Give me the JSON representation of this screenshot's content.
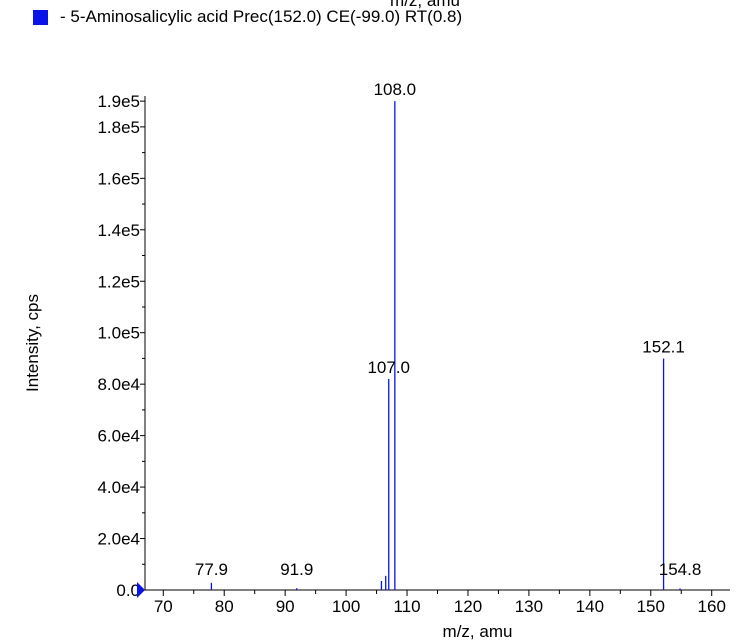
{
  "colors": {
    "series": "#0a14e8",
    "axis": "#000000",
    "background": "#ffffff"
  },
  "header": {
    "cut_title": "m/z, amu"
  },
  "legend": {
    "marker": "square",
    "text": "- 5-Aminosalicylic acid Prec(152.0) CE(-99.0) RT(0.8)"
  },
  "chart_data": {
    "type": "bar",
    "subtype": "mass-spectrum-stick",
    "title": "",
    "xlabel": "m/z, amu",
    "ylabel": "Intensity, cps",
    "xlim": [
      67,
      163
    ],
    "ylim": [
      0,
      192000
    ],
    "x_ticks": [
      70,
      80,
      90,
      100,
      110,
      120,
      130,
      140,
      150,
      160
    ],
    "x_tick_labels": [
      "70",
      "80",
      "90",
      "100",
      "110",
      "120",
      "130",
      "140",
      "150",
      "160"
    ],
    "y_ticks": [
      0,
      20000,
      40000,
      60000,
      80000,
      100000,
      120000,
      140000,
      160000,
      180000,
      190000
    ],
    "y_tick_labels": [
      "0.0",
      "2.0e4",
      "4.0e4",
      "6.0e4",
      "8.0e4",
      "1.0e5",
      "1.2e5",
      "1.4e5",
      "1.6e5",
      "1.8e5",
      "1.9e5"
    ],
    "grid": false,
    "legend_position": "top-left",
    "series": [
      {
        "name": "5-Aminosalicylic acid Prec(152.0) CE(-99.0) RT(0.8)",
        "x": [
          77.9,
          91.9,
          105.8,
          106.5,
          107.0,
          108.0,
          152.1,
          154.8
        ],
        "y": [
          2800,
          700,
          3500,
          5500,
          82000,
          190000,
          90000,
          600
        ]
      }
    ],
    "peak_labels": [
      {
        "x": 108.0,
        "label": "108.0"
      },
      {
        "x": 107.0,
        "label": "107.0"
      },
      {
        "x": 152.1,
        "label": "152.1"
      },
      {
        "x": 77.9,
        "label": "77.9"
      },
      {
        "x": 91.9,
        "label": "91.9"
      },
      {
        "x": 154.8,
        "label": "154.8"
      }
    ]
  }
}
